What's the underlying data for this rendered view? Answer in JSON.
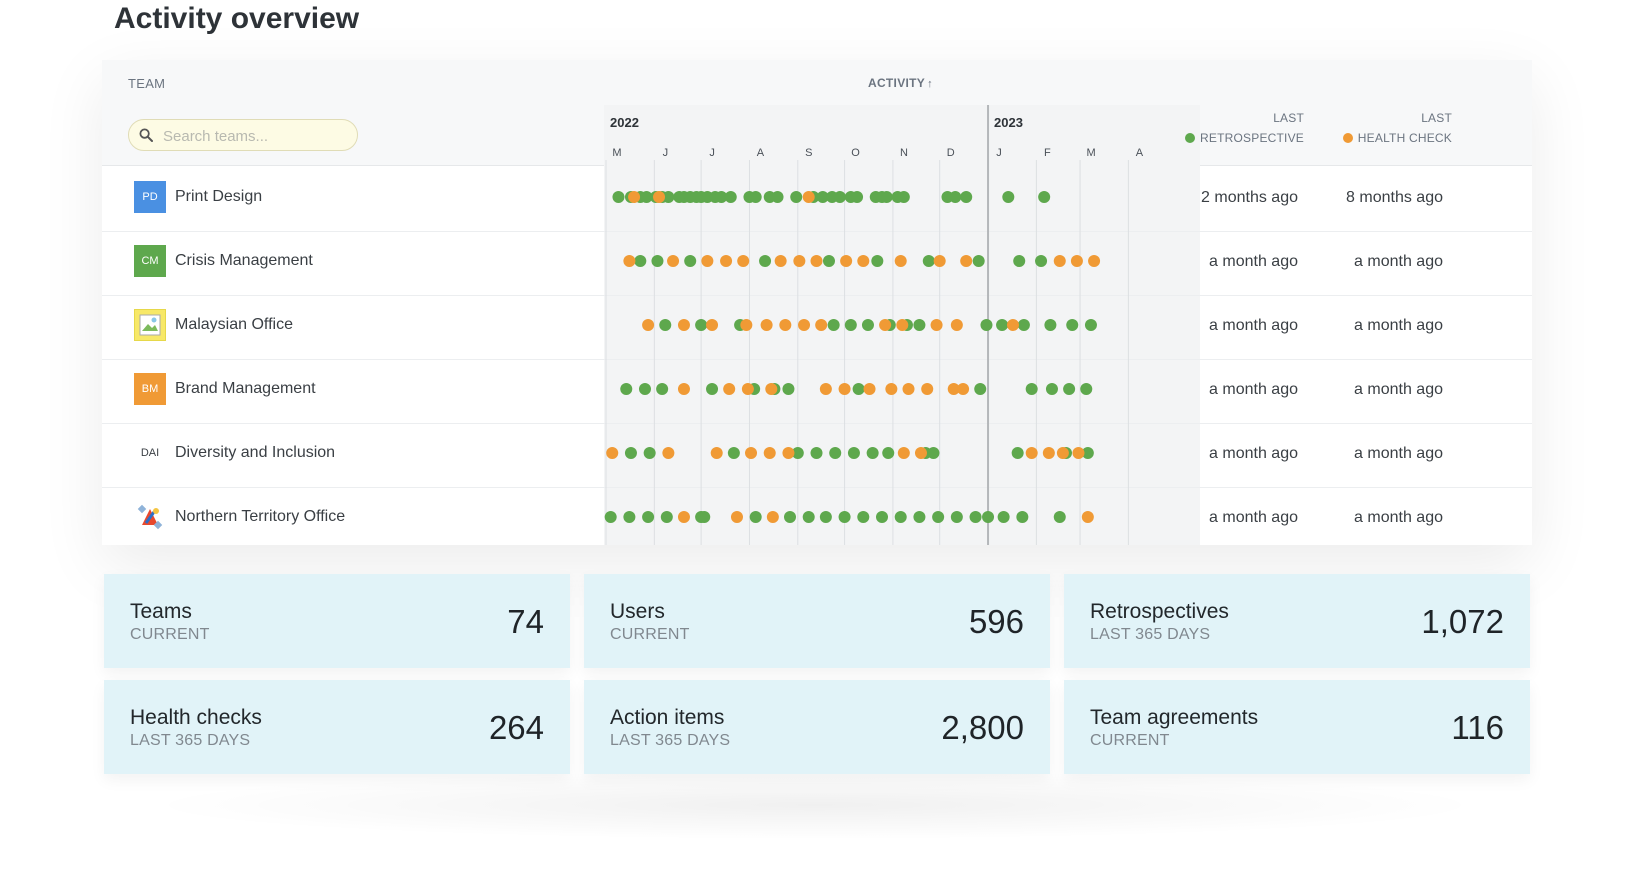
{
  "page": {
    "title": "Activity overview"
  },
  "table": {
    "team_header": "TEAM",
    "activity_header": "ACTIVITY",
    "activity_sort_icon": "arrow-up-icon",
    "search": {
      "placeholder": "Search teams...",
      "value": ""
    },
    "years": [
      "2022",
      "2023"
    ],
    "months": [
      "M",
      "J",
      "J",
      "A",
      "S",
      "O",
      "N",
      "D",
      "J",
      "F",
      "M",
      "A"
    ],
    "last_retro_header": {
      "line1": "LAST",
      "line2": "RETROSPECTIVE"
    },
    "last_health_header": {
      "line1": "LAST",
      "line2": "HEALTH CHECK"
    },
    "legend_colors": {
      "retrospective": "#5ea84d",
      "health_check": "#f09a35"
    },
    "rows": [
      {
        "name": "Print Design",
        "avatar_text": "PD",
        "avatar_color": "#4a90e2",
        "last_retrospective": "2 months ago",
        "last_health_check": "8 months ago",
        "retro_dates": [
          "2022-05-09",
          "2022-05-17",
          "2022-05-23",
          "2022-05-27",
          "2022-06-02",
          "2022-06-06",
          "2022-06-10",
          "2022-06-17",
          "2022-06-20",
          "2022-06-24",
          "2022-06-28",
          "2022-07-01",
          "2022-07-05",
          "2022-07-10",
          "2022-07-14",
          "2022-07-20",
          "2022-08-01",
          "2022-08-05",
          "2022-08-14",
          "2022-08-19",
          "2022-08-31",
          "2022-09-11",
          "2022-09-17",
          "2022-09-23",
          "2022-09-28",
          "2022-10-05",
          "2022-10-09",
          "2022-10-21",
          "2022-10-25",
          "2022-10-28",
          "2022-11-04",
          "2022-11-08",
          "2022-12-06",
          "2022-12-11",
          "2022-12-18",
          "2023-01-14",
          "2023-02-06"
        ],
        "health_dates": [
          "2022-05-19",
          "2022-06-04",
          "2022-09-08"
        ]
      },
      {
        "name": "Crisis Management",
        "avatar_text": "CM",
        "avatar_color": "#5ea84d",
        "last_retrospective": "a month ago",
        "last_health_check": "a month ago",
        "retro_dates": [
          "2022-05-23",
          "2022-06-03",
          "2022-06-24",
          "2022-08-11",
          "2022-09-21",
          "2022-10-22",
          "2022-11-24",
          "2022-12-26",
          "2023-01-21",
          "2023-02-04"
        ],
        "health_dates": [
          "2022-05-16",
          "2022-06-13",
          "2022-07-05",
          "2022-07-17",
          "2022-07-28",
          "2022-08-21",
          "2022-09-02",
          "2022-09-13",
          "2022-10-02",
          "2022-10-13",
          "2022-11-06",
          "2022-12-01",
          "2022-12-18",
          "2023-02-16",
          "2023-02-27",
          "2023-03-10"
        ]
      },
      {
        "name": "Malaysian Office",
        "avatar_text": "",
        "avatar_color": "#f7e868",
        "last_retrospective": "a month ago",
        "last_health_check": "a month ago",
        "retro_dates": [
          "2022-06-08",
          "2022-07-01",
          "2022-07-26",
          "2022-09-24",
          "2022-10-05",
          "2022-10-16",
          "2022-10-30",
          "2022-11-10",
          "2022-11-18",
          "2022-12-31",
          "2023-01-10",
          "2023-01-24",
          "2023-02-10",
          "2023-02-24",
          "2023-03-08"
        ],
        "health_dates": [
          "2022-05-28",
          "2022-06-20",
          "2022-07-08",
          "2022-07-30",
          "2022-08-12",
          "2022-08-24",
          "2022-09-05",
          "2022-09-16",
          "2022-10-27",
          "2022-11-07",
          "2022-11-29",
          "2022-12-12",
          "2023-01-17"
        ]
      },
      {
        "name": "Brand Management",
        "avatar_text": "BM",
        "avatar_color": "#f09a35",
        "last_retrospective": "a month ago",
        "last_health_check": "a month ago",
        "retro_dates": [
          "2022-05-14",
          "2022-05-26",
          "2022-06-06",
          "2022-07-08",
          "2022-08-04",
          "2022-08-17",
          "2022-08-26",
          "2022-10-10",
          "2022-12-27",
          "2023-01-29",
          "2023-02-11",
          "2023-02-22",
          "2023-03-05"
        ],
        "health_dates": [
          "2022-06-20",
          "2022-07-19",
          "2022-07-31",
          "2022-08-15",
          "2022-09-19",
          "2022-10-01",
          "2022-10-17",
          "2022-10-31",
          "2022-11-11",
          "2022-11-23",
          "2022-12-10",
          "2022-12-16"
        ]
      },
      {
        "name": "Diversity and Inclusion",
        "avatar_text": "DAI",
        "avatar_color": "#ffffff",
        "last_retrospective": "a month ago",
        "last_health_check": "a month ago",
        "retro_dates": [
          "2022-05-17",
          "2022-05-29",
          "2022-07-22",
          "2022-09-01",
          "2022-09-13",
          "2022-09-25",
          "2022-10-07",
          "2022-10-19",
          "2022-10-29",
          "2022-11-22",
          "2022-11-27",
          "2023-01-20",
          "2023-02-20",
          "2023-03-06"
        ],
        "health_dates": [
          "2022-05-05",
          "2022-06-10",
          "2022-07-11",
          "2022-08-02",
          "2022-08-14",
          "2022-08-26",
          "2022-11-08",
          "2022-11-19",
          "2023-01-29",
          "2023-02-09",
          "2023-02-18",
          "2023-02-28"
        ]
      },
      {
        "name": "Northern Territory Office",
        "avatar_text": "",
        "avatar_color": "#ffffff",
        "last_retrospective": "a month ago",
        "last_health_check": "a month ago",
        "retro_dates": [
          "2022-05-04",
          "2022-05-16",
          "2022-05-28",
          "2022-06-09",
          "2022-07-01",
          "2022-07-03",
          "2022-08-05",
          "2022-08-27",
          "2022-09-08",
          "2022-09-19",
          "2022-10-01",
          "2022-10-13",
          "2022-10-25",
          "2022-11-06",
          "2022-11-18",
          "2022-11-30",
          "2022-12-12",
          "2022-12-24",
          "2023-01-01",
          "2023-01-11",
          "2023-01-23",
          "2023-02-16"
        ],
        "health_dates": [
          "2022-06-20",
          "2022-07-24",
          "2022-08-16",
          "2023-03-06"
        ]
      }
    ]
  },
  "stats": [
    {
      "label": "Teams",
      "sub": "CURRENT",
      "value": "74"
    },
    {
      "label": "Users",
      "sub": "CURRENT",
      "value": "596"
    },
    {
      "label": "Retrospectives",
      "sub": "LAST 365 DAYS",
      "value": "1,072"
    },
    {
      "label": "Health checks",
      "sub": "LAST 365 DAYS",
      "value": "264"
    },
    {
      "label": "Action items",
      "sub": "LAST 365 DAYS",
      "value": "2,800"
    },
    {
      "label": "Team agreements",
      "sub": "CURRENT",
      "value": "116"
    }
  ]
}
